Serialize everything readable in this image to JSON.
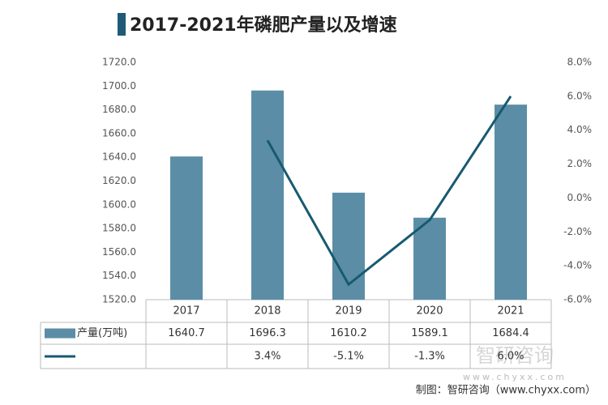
{
  "chart_data": {
    "type": "bar-line",
    "title": "2017-2021年磷肥产量以及增速",
    "categories": [
      "2017",
      "2018",
      "2019",
      "2020",
      "2021"
    ],
    "series": [
      {
        "name": "产量(万吨)",
        "type": "bar",
        "color": "#5b8ea6",
        "values": [
          1640.7,
          1696.3,
          1610.2,
          1589.1,
          1684.4
        ]
      },
      {
        "type": "line",
        "axis": "y2",
        "color": "#175a70",
        "values": [
          null,
          3.4,
          -5.1,
          -1.3,
          6.0
        ],
        "value_labels": [
          null,
          "3.4%",
          "-5.1%",
          "-1.3%",
          "6.0%"
        ]
      }
    ],
    "ylim": [
      1520,
      1720
    ],
    "yticks": [
      {
        "value": 1520,
        "label": "1520.0"
      },
      {
        "value": 1540,
        "label": "1540.0"
      },
      {
        "value": 1560,
        "label": "1560.0"
      },
      {
        "value": 1580,
        "label": "1580.0"
      },
      {
        "value": 1600,
        "label": "1600.0"
      },
      {
        "value": 1620,
        "label": "1620.0"
      },
      {
        "value": 1640,
        "label": "1640.0"
      },
      {
        "value": 1660,
        "label": "1660.0"
      },
      {
        "value": 1680,
        "label": "1680.0"
      },
      {
        "value": 1700,
        "label": "1700.0"
      },
      {
        "value": 1720,
        "label": "1720.0"
      }
    ],
    "y2lim": [
      -6,
      8
    ],
    "y2ticks": [
      {
        "value": -6,
        "label": "-6.0%"
      },
      {
        "value": -4,
        "label": "-4.0%"
      },
      {
        "value": -2,
        "label": "-2.0%"
      },
      {
        "value": 0,
        "label": "0.0%"
      },
      {
        "value": 2,
        "label": "2.0%"
      },
      {
        "value": 4,
        "label": "4.0%"
      },
      {
        "value": 6,
        "label": "6.0%"
      },
      {
        "value": 8,
        "label": "8.0%"
      }
    ],
    "watermark": "智研咨询",
    "watermark_url": "www.chyxx.com",
    "source": "制图：智研咨询（www.chyxx.com）"
  }
}
